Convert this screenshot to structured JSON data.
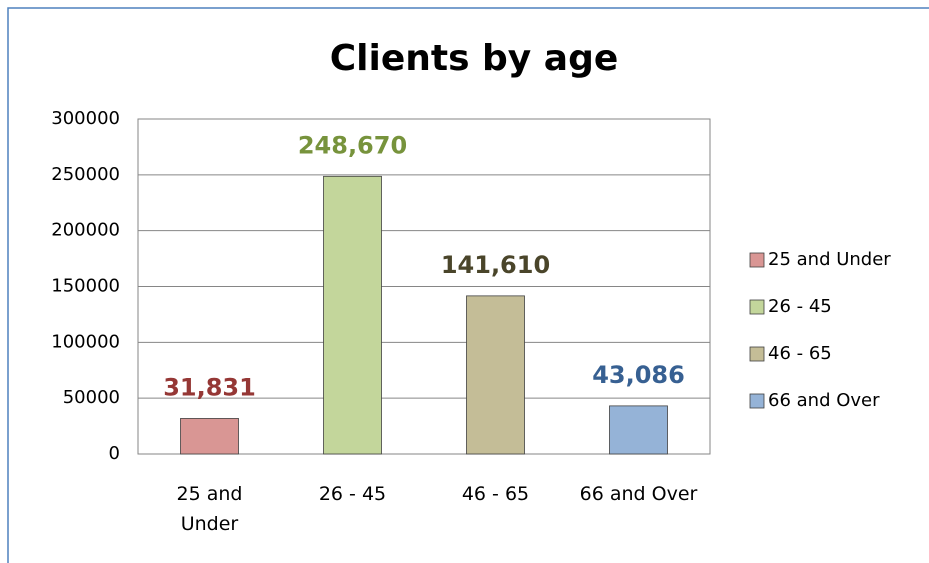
{
  "chart_data": {
    "type": "bar",
    "title": "Clients by age",
    "categories": [
      "25 and Under",
      "26 - 45",
      "46 - 65",
      "66 and Over"
    ],
    "values": [
      31831,
      248670,
      141610,
      43086
    ],
    "value_labels": [
      "31,831",
      "248,670",
      "141,610",
      "43,086"
    ],
    "colors": [
      "#d99694",
      "#c3d69b",
      "#c4bd97",
      "#95b3d7"
    ],
    "label_colors": [
      "#953735",
      "#77933c",
      "#4a452a",
      "#376092"
    ],
    "ylim": [
      0,
      300000
    ],
    "yticks": [
      0,
      50000,
      100000,
      150000,
      200000,
      250000,
      300000
    ],
    "grid": true,
    "legend": "right"
  }
}
